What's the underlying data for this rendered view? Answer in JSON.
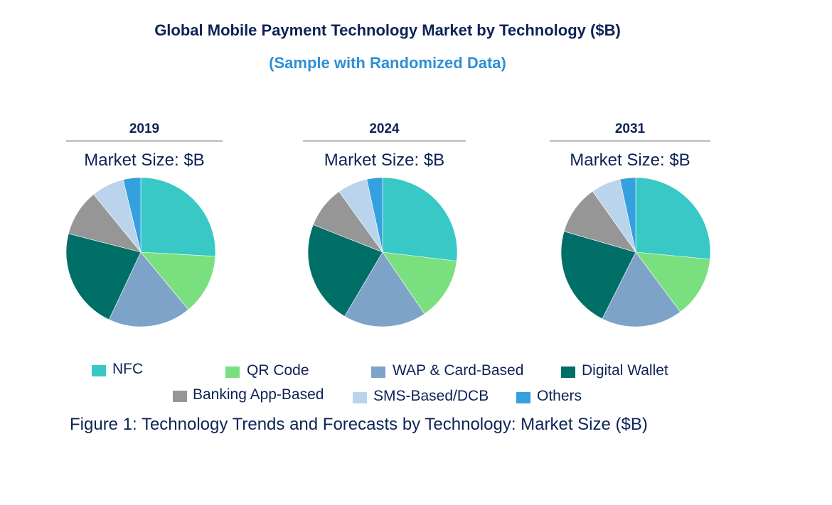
{
  "chart_data": [
    {
      "type": "pie",
      "title": "2019",
      "subtitle": "Market Size: $B",
      "categories": [
        "NFC",
        "QR Code",
        "WAP & Card-Based",
        "Digital Wallet",
        "Banking App-Based",
        "SMS-Based/DCB",
        "Others"
      ],
      "values": [
        25.9,
        13.1,
        18.0,
        22.0,
        10.1,
        7.1,
        3.8
      ]
    },
    {
      "type": "pie",
      "title": "2024",
      "subtitle": "Market Size: $B",
      "categories": [
        "NFC",
        "QR Code",
        "WAP & Card-Based",
        "Digital Wallet",
        "Banking App-Based",
        "SMS-Based/DCB",
        "Others"
      ],
      "values": [
        26.9,
        13.6,
        18.0,
        22.5,
        9.1,
        6.5,
        3.4
      ]
    },
    {
      "type": "pie",
      "title": "2031",
      "subtitle": "Market Size: $B",
      "categories": [
        "NFC",
        "QR Code",
        "WAP & Card-Based",
        "Digital Wallet",
        "Banking App-Based",
        "SMS-Based/DCB",
        "Others"
      ],
      "values": [
        26.5,
        13.3,
        17.6,
        22.1,
        10.7,
        6.4,
        3.4
      ]
    }
  ],
  "title": "Global Mobile Payment Technology Market by Technology ($B)",
  "subtitle": "(Sample with Randomized Data)",
  "legend": {
    "placement": "bottom",
    "items": [
      {
        "label": "NFC",
        "color": "#38c8c5"
      },
      {
        "label": "QR Code",
        "color": "#7ae07f"
      },
      {
        "label": "WAP & Card-Based",
        "color": "#7ea3c8"
      },
      {
        "label": "Digital Wallet",
        "color": "#006f67"
      },
      {
        "label": "Banking App-Based",
        "color": "#969696"
      },
      {
        "label": "SMS-Based/DCB",
        "color": "#b9d4ec"
      },
      {
        "label": "Others",
        "color": "#35a0e0"
      }
    ]
  },
  "caption": "Figure 1: Technology Trends and Forecasts by Technology: Market Size ($B)"
}
